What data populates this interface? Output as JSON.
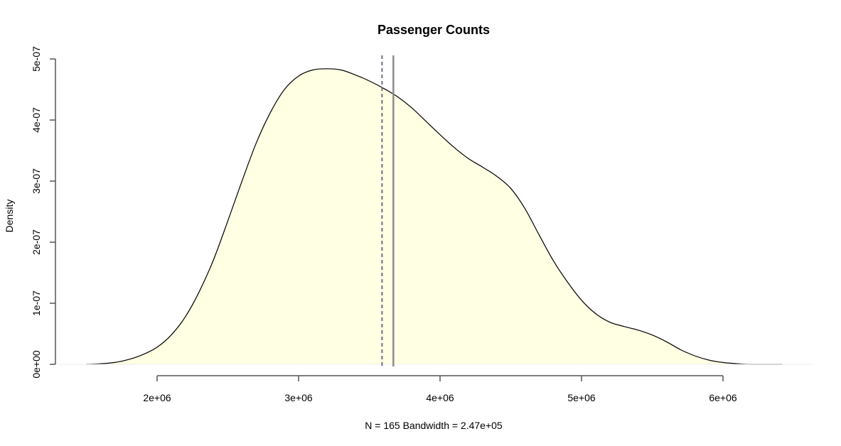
{
  "chart_data": {
    "type": "area",
    "title": "Passenger Counts",
    "xlabel": "N = 165   Bandwidth = 2.47e+05",
    "ylabel": "Density",
    "xlim": [
      1500000,
      6400000
    ],
    "ylim": [
      0,
      5e-07
    ],
    "x_ticks": [
      2000000,
      3000000,
      4000000,
      5000000,
      6000000
    ],
    "x_tick_labels": [
      "2e+06",
      "3e+06",
      "4e+06",
      "5e+06",
      "6e+06"
    ],
    "y_ticks": [
      0,
      1e-07,
      2e-07,
      3e-07,
      4e-07,
      5e-07
    ],
    "y_tick_labels": [
      "0e+00",
      "1e-07",
      "2e-07",
      "3e-07",
      "4e-07",
      "5e-07"
    ],
    "series": [
      {
        "x": [
          1500000,
          1600000,
          1700000,
          1800000,
          1900000,
          2000000,
          2100000,
          2200000,
          2300000,
          2400000,
          2500000,
          2600000,
          2700000,
          2800000,
          2900000,
          3000000,
          3100000,
          3200000,
          3300000,
          3400000,
          3500000,
          3600000,
          3700000,
          3800000,
          3900000,
          4000000,
          4100000,
          4200000,
          4300000,
          4400000,
          4500000,
          4600000,
          4700000,
          4800000,
          4900000,
          5000000,
          5100000,
          5200000,
          5300000,
          5400000,
          5500000,
          5600000,
          5700000,
          5800000,
          5900000,
          6000000,
          6100000,
          6200000,
          6300000,
          6420000
        ],
        "y": [
          0,
          1e-09,
          3e-09,
          8e-09,
          1.6e-08,
          2.8e-08,
          4.8e-08,
          7.8e-08,
          1.2e-07,
          1.72e-07,
          2.35e-07,
          3e-07,
          3.62e-07,
          4.12e-07,
          4.5e-07,
          4.72e-07,
          4.82e-07,
          4.84e-07,
          4.82e-07,
          4.74e-07,
          4.64e-07,
          4.52e-07,
          4.38e-07,
          4.2e-07,
          3.98e-07,
          3.76e-07,
          3.55e-07,
          3.37e-07,
          3.23e-07,
          3.08e-07,
          2.88e-07,
          2.55e-07,
          2.12e-07,
          1.7e-07,
          1.35e-07,
          1.05e-07,
          8.3e-08,
          6.9e-08,
          6.2e-08,
          5.6e-08,
          4.8e-08,
          3.7e-08,
          2.4e-08,
          1.4e-08,
          7e-09,
          3e-09,
          1e-09,
          0,
          0,
          0
        ]
      }
    ],
    "reference_lines": [
      {
        "x": 3590000,
        "style": "dashed"
      },
      {
        "x": 3670000,
        "style": "solid"
      }
    ],
    "colors": {
      "fill": "#ffffe3",
      "curve": "#000000",
      "axis": "#555555",
      "ref_line_dashed": "#6e6e82",
      "ref_line_solid": "#8c8c8c"
    }
  }
}
